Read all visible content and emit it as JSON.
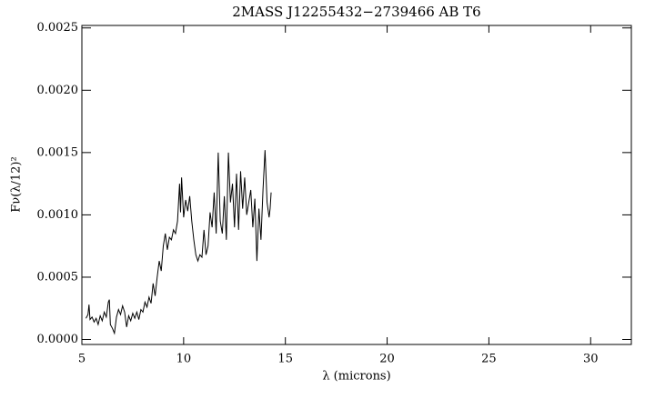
{
  "chart_data": {
    "type": "line",
    "title": "2MASS J12255432−2739466 AB T6",
    "x_label": "λ (microns)",
    "y_label": "Fν(λ/12)²",
    "xlim": [
      5,
      32
    ],
    "xticks": [
      5,
      10,
      15,
      20,
      25,
      30
    ],
    "ylim": [
      -4e-05,
      0.00252
    ],
    "yticks": [
      {
        "value": 0,
        "label": "0.0000"
      },
      {
        "value": 0.0005,
        "label": "0.0005"
      },
      {
        "value": 0.001,
        "label": "0.0010"
      },
      {
        "value": 0.0015,
        "label": "0.0015"
      },
      {
        "value": 0.002,
        "label": "0.0020"
      },
      {
        "value": 0.0025,
        "label": "0.0025"
      }
    ],
    "grid": false,
    "series": [
      {
        "color": "#000000",
        "x": [
          5.2,
          5.3,
          5.35,
          5.4,
          5.5,
          5.6,
          5.7,
          5.8,
          5.9,
          6.0,
          6.1,
          6.2,
          6.3,
          6.35,
          6.4,
          6.5,
          6.6,
          6.7,
          6.8,
          6.9,
          7.0,
          7.1,
          7.2,
          7.3,
          7.4,
          7.5,
          7.6,
          7.7,
          7.8,
          7.9,
          8.0,
          8.1,
          8.2,
          8.3,
          8.4,
          8.5,
          8.6,
          8.7,
          8.8,
          8.9,
          9.0,
          9.1,
          9.2,
          9.3,
          9.4,
          9.5,
          9.6,
          9.7,
          9.8,
          9.85,
          9.9,
          10.0,
          10.1,
          10.2,
          10.3,
          10.4,
          10.5,
          10.6,
          10.7,
          10.8,
          10.9,
          11.0,
          11.1,
          11.2,
          11.3,
          11.4,
          11.5,
          11.6,
          11.7,
          11.8,
          11.9,
          12.0,
          12.1,
          12.2,
          12.3,
          12.4,
          12.5,
          12.6,
          12.7,
          12.8,
          12.9,
          13.0,
          13.1,
          13.2,
          13.3,
          13.4,
          13.5,
          13.6,
          13.7,
          13.8,
          13.9,
          14.0,
          14.1,
          14.2,
          14.25,
          14.3
        ],
        "values": [
          0.00017,
          0.0002,
          0.00028,
          0.00016,
          0.00018,
          0.00014,
          0.00017,
          0.00012,
          0.00019,
          0.00015,
          0.00022,
          0.00018,
          0.0003,
          0.00032,
          0.00012,
          9e-05,
          5e-05,
          0.00018,
          0.00024,
          0.0002,
          0.00027,
          0.00022,
          0.0001,
          0.00019,
          0.00015,
          0.00021,
          0.00017,
          0.00022,
          0.00016,
          0.00024,
          0.00022,
          0.0003,
          0.00026,
          0.00034,
          0.00029,
          0.00045,
          0.00035,
          0.0005,
          0.00063,
          0.00055,
          0.00075,
          0.00085,
          0.00072,
          0.00082,
          0.0008,
          0.00088,
          0.00085,
          0.00095,
          0.00125,
          0.00102,
          0.0013,
          0.00098,
          0.00112,
          0.00103,
          0.00115,
          0.00095,
          0.0008,
          0.00068,
          0.00063,
          0.00068,
          0.00066,
          0.00088,
          0.00068,
          0.00075,
          0.00102,
          0.0009,
          0.00118,
          0.00085,
          0.0015,
          0.00095,
          0.00085,
          0.00115,
          0.0008,
          0.0015,
          0.0011,
          0.00125,
          0.0009,
          0.00133,
          0.00088,
          0.00135,
          0.00105,
          0.0013,
          0.001,
          0.0011,
          0.0012,
          0.0009,
          0.00113,
          0.00063,
          0.00105,
          0.0008,
          0.0012,
          0.00152,
          0.0011,
          0.00098,
          0.00105,
          0.00118
        ]
      }
    ]
  }
}
